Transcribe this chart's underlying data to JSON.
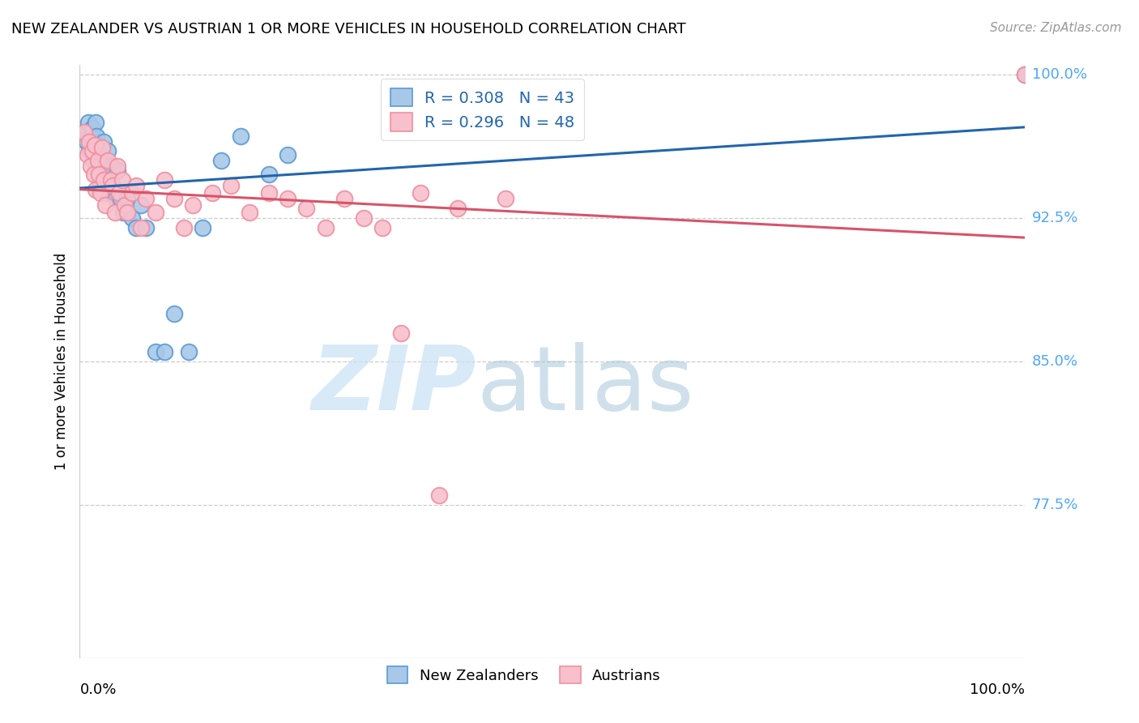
{
  "title": "NEW ZEALANDER VS AUSTRIAN 1 OR MORE VEHICLES IN HOUSEHOLD CORRELATION CHART",
  "source": "Source: ZipAtlas.com",
  "ylabel": "1 or more Vehicles in Household",
  "xmin": 0.0,
  "xmax": 1.0,
  "ymin": 0.695,
  "ymax": 1.005,
  "yticks": [
    0.775,
    0.85,
    0.925,
    1.0
  ],
  "ytick_labels": [
    "77.5%",
    "85.0%",
    "92.5%",
    "100.0%"
  ],
  "nz_color_edge": "#5b9bd5",
  "nz_color_fill": "#a8c8e8",
  "at_color_edge": "#f090a0",
  "at_color_fill": "#f8c0cc",
  "nz_R": 0.308,
  "nz_N": 43,
  "at_R": 0.296,
  "at_N": 48,
  "nz_line_color": "#2166ac",
  "at_line_color": "#d6546a",
  "legend_text_color": "#2166ac",
  "nz_points_x": [
    0.005,
    0.007,
    0.009,
    0.01,
    0.012,
    0.013,
    0.014,
    0.015,
    0.016,
    0.017,
    0.018,
    0.019,
    0.02,
    0.021,
    0.022,
    0.023,
    0.025,
    0.026,
    0.027,
    0.028,
    0.03,
    0.032,
    0.034,
    0.036,
    0.038,
    0.04,
    0.043,
    0.046,
    0.05,
    0.055,
    0.06,
    0.065,
    0.07,
    0.08,
    0.09,
    0.1,
    0.115,
    0.13,
    0.15,
    0.17,
    0.2,
    0.22,
    1.0
  ],
  "nz_points_y": [
    0.97,
    0.965,
    0.975,
    0.96,
    0.968,
    0.972,
    0.955,
    0.963,
    0.958,
    0.975,
    0.968,
    0.95,
    0.96,
    0.945,
    0.958,
    0.94,
    0.965,
    0.952,
    0.945,
    0.938,
    0.96,
    0.948,
    0.952,
    0.94,
    0.935,
    0.95,
    0.935,
    0.928,
    0.935,
    0.925,
    0.92,
    0.932,
    0.92,
    0.855,
    0.855,
    0.875,
    0.855,
    0.92,
    0.955,
    0.968,
    0.948,
    0.958,
    1.0
  ],
  "at_points_x": [
    0.005,
    0.008,
    0.01,
    0.012,
    0.013,
    0.015,
    0.016,
    0.017,
    0.019,
    0.02,
    0.022,
    0.024,
    0.025,
    0.027,
    0.03,
    0.033,
    0.035,
    0.037,
    0.04,
    0.042,
    0.045,
    0.048,
    0.05,
    0.055,
    0.06,
    0.065,
    0.07,
    0.08,
    0.09,
    0.1,
    0.11,
    0.12,
    0.14,
    0.16,
    0.18,
    0.2,
    0.22,
    0.24,
    0.26,
    0.28,
    0.3,
    0.32,
    0.34,
    0.36,
    0.38,
    0.4,
    0.45,
    1.0
  ],
  "at_points_y": [
    0.97,
    0.958,
    0.965,
    0.952,
    0.96,
    0.948,
    0.963,
    0.94,
    0.955,
    0.948,
    0.938,
    0.962,
    0.945,
    0.932,
    0.955,
    0.945,
    0.942,
    0.928,
    0.952,
    0.938,
    0.945,
    0.932,
    0.928,
    0.938,
    0.942,
    0.92,
    0.935,
    0.928,
    0.945,
    0.935,
    0.92,
    0.932,
    0.938,
    0.942,
    0.928,
    0.938,
    0.935,
    0.93,
    0.92,
    0.935,
    0.925,
    0.92,
    0.865,
    0.938,
    0.78,
    0.93,
    0.935,
    1.0
  ],
  "bottom_legend_labels": [
    "New Zealanders",
    "Austrians"
  ]
}
